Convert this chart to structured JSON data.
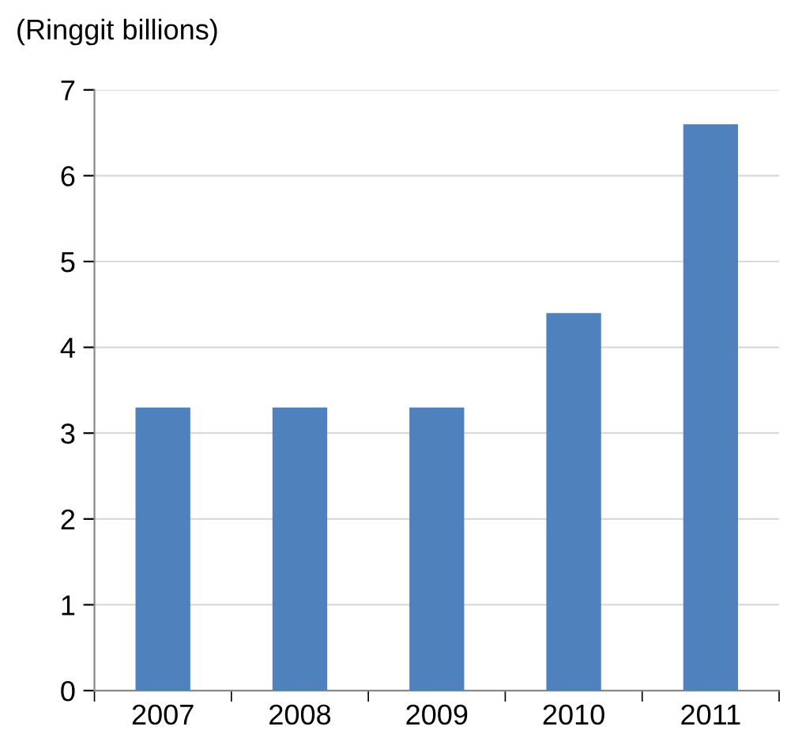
{
  "chart_data": {
    "type": "bar",
    "ylabel": "(Ringgit billions)",
    "categories": [
      "2007",
      "2008",
      "2009",
      "2010",
      "2011"
    ],
    "values": [
      3.3,
      3.3,
      3.3,
      4.4,
      6.6
    ],
    "color": "#4f81bd",
    "ylim": [
      0,
      7
    ],
    "yticks": [
      0,
      1,
      2,
      3,
      4,
      5,
      6,
      7
    ],
    "grid": "y",
    "legend": false
  }
}
